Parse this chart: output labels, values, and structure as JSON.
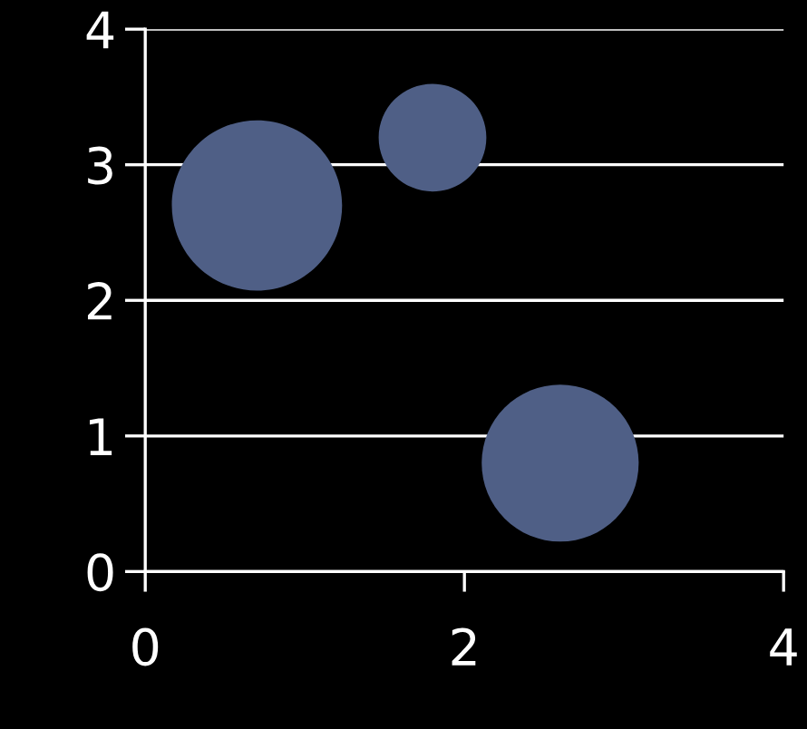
{
  "chart_data": {
    "type": "bubble",
    "x": [
      0.7,
      1.8,
      2.6
    ],
    "values": [
      2.7,
      3.2,
      0.8
    ],
    "sizes": [
      1,
      0.4,
      0.85
    ],
    "color": "#4f5f86",
    "xlim": [
      0,
      4
    ],
    "xticks": [
      0,
      2,
      4
    ],
    "ylim": [
      0,
      4
    ],
    "yticks": [
      0,
      1,
      2,
      3,
      4
    ],
    "grid": "y"
  }
}
